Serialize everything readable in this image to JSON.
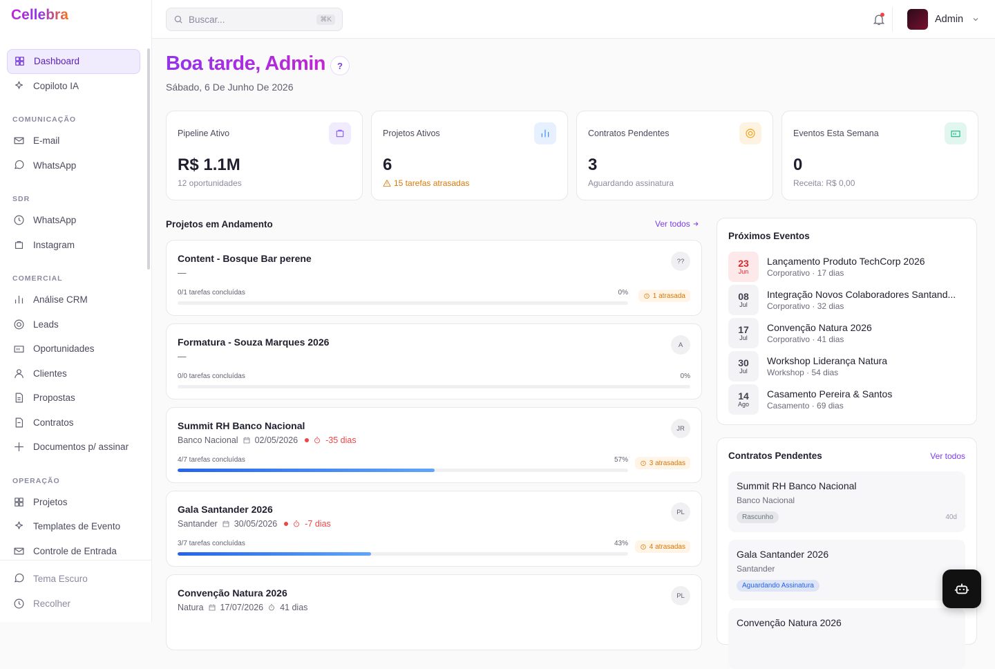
{
  "sidebar": {
    "logo": "Cellebra",
    "top": [
      "Dashboard",
      "Copiloto IA"
    ],
    "sections": [
      {
        "title": "COMUNICAÇÃO",
        "items": [
          "E-mail",
          "WhatsApp"
        ]
      },
      {
        "title": "SDR",
        "items": [
          "WhatsApp",
          "Instagram"
        ]
      },
      {
        "title": "COMERCIAL",
        "items": [
          "Análise CRM",
          "Leads",
          "Oportunidades",
          "Clientes",
          "Propostas",
          "Contratos",
          "Documentos p/ assinar"
        ]
      },
      {
        "title": "OPERAÇÃO",
        "items": [
          "Projetos",
          "Templates de Evento",
          "Controle de Entrada"
        ]
      }
    ],
    "footer": [
      "Tema Escuro",
      "Recolher"
    ]
  },
  "header": {
    "search": "Buscar...",
    "shortcut": "⌘K",
    "user": "Admin"
  },
  "greeting": {
    "title": "Boa tarde, Admin",
    "date": "Sábado, 6 De Junho De 2026"
  },
  "stats": [
    {
      "label": "Pipeline Ativo",
      "value": "R$ 1.1M",
      "sub": "12 oportunidades",
      "color": "#8b5cf6"
    },
    {
      "label": "Projetos Ativos",
      "value": 6,
      "sub": "15 tarefas atrasadas",
      "warning": true,
      "color": "#3b82f6"
    },
    {
      "label": "Contratos Pendentes",
      "value": 3,
      "sub": "Aguardando assinatura",
      "color": "#f59e0b"
    },
    {
      "label": "Eventos Esta Semana",
      "value": 0,
      "sub": "Receita: R$ 0,00",
      "color": "#10b981"
    }
  ],
  "projects": {
    "title": "Projetos em Andamento",
    "link": "Ver todos",
    "items": [
      {
        "name": "Content - Bosque Bar perene",
        "client": "—",
        "avatar": "??",
        "tasks": "0/1 tarefas concluídas",
        "progress": {
          "value": 0,
          "label": "0%"
        },
        "badge": "1 atrasada"
      },
      {
        "name": "Formatura - Souza Marques 2026",
        "client": "—",
        "avatar": "A",
        "tasks": "0/0 tarefas concluídas",
        "progress": {
          "value": 0,
          "label": "0%"
        }
      },
      {
        "name": "Summit RH Banco Nacional",
        "client": "Banco Nacional",
        "date": "02/05/2026",
        "due": "-35 dias",
        "overdue": true,
        "avatar": "JR",
        "tasks": "4/7 tarefas concluídas",
        "progress": {
          "value": 57,
          "label": "57%"
        },
        "badge": "3 atrasadas"
      },
      {
        "name": "Gala Santander 2026",
        "client": "Santander",
        "date": "30/05/2026",
        "due": "-7 dias",
        "overdue": true,
        "avatar": "PL",
        "tasks": "3/7 tarefas concluídas",
        "progress": {
          "value": 43,
          "label": "43%"
        },
        "badge": "4 atrasadas"
      },
      {
        "name": "Convenção Natura 2026",
        "client": "Natura",
        "date": "17/07/2026",
        "due": "41 dias",
        "avatar": "PL"
      }
    ]
  },
  "events": {
    "title": "Próximos Eventos",
    "items": [
      {
        "day": "23",
        "month": "Jun",
        "name": "Lançamento Produto TechCorp 2026",
        "sub": "Corporativo · 17 dias",
        "highlight": true
      },
      {
        "day": "08",
        "month": "Jul",
        "name": "Integração Novos Colaboradores Santand...",
        "sub": "Corporativo · 32 dias"
      },
      {
        "day": "17",
        "month": "Jul",
        "name": "Convenção Natura 2026",
        "sub": "Corporativo · 41 dias"
      },
      {
        "day": "30",
        "month": "Jul",
        "name": "Workshop Liderança Natura",
        "sub": "Workshop · 54 dias"
      },
      {
        "day": "14",
        "month": "Ago",
        "name": "Casamento Pereira & Santos",
        "sub": "Casamento · 69 dias"
      }
    ]
  },
  "contracts": {
    "title": "Contratos Pendentes",
    "link": "Ver todos",
    "items": [
      {
        "name": "Summit RH Banco Nacional",
        "client": "Banco Nacional",
        "status": "Rascunho",
        "status_color": "#6b7280",
        "age": "40d"
      },
      {
        "name": "Gala Santander 2026",
        "client": "Santander",
        "status": "Aguardando Assinatura",
        "status_color": "#2563eb"
      },
      {
        "name": "Convenção Natura 2026"
      }
    ]
  }
}
